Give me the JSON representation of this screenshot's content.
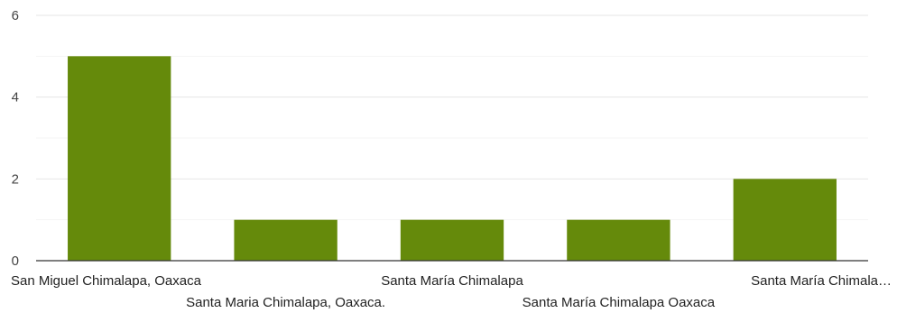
{
  "chart_data": {
    "type": "bar",
    "categories": [
      "San Miguel Chimalapa, Oaxaca",
      "Santa Maria Chimalapa, Oaxaca.",
      "Santa María Chimalapa",
      "Santa María Chimalapa Oaxaca",
      "Santa María Chimala…"
    ],
    "values": [
      5,
      1,
      1,
      1,
      2
    ],
    "ylim": [
      0,
      6
    ],
    "yticks": [
      0,
      2,
      4,
      6
    ],
    "grid": true,
    "legend": "none",
    "colors": {
      "bar": "#658A0B",
      "grid_major": "#e6e6e6",
      "grid_minor": "#f4f4f4",
      "axis": "#333333"
    }
  }
}
